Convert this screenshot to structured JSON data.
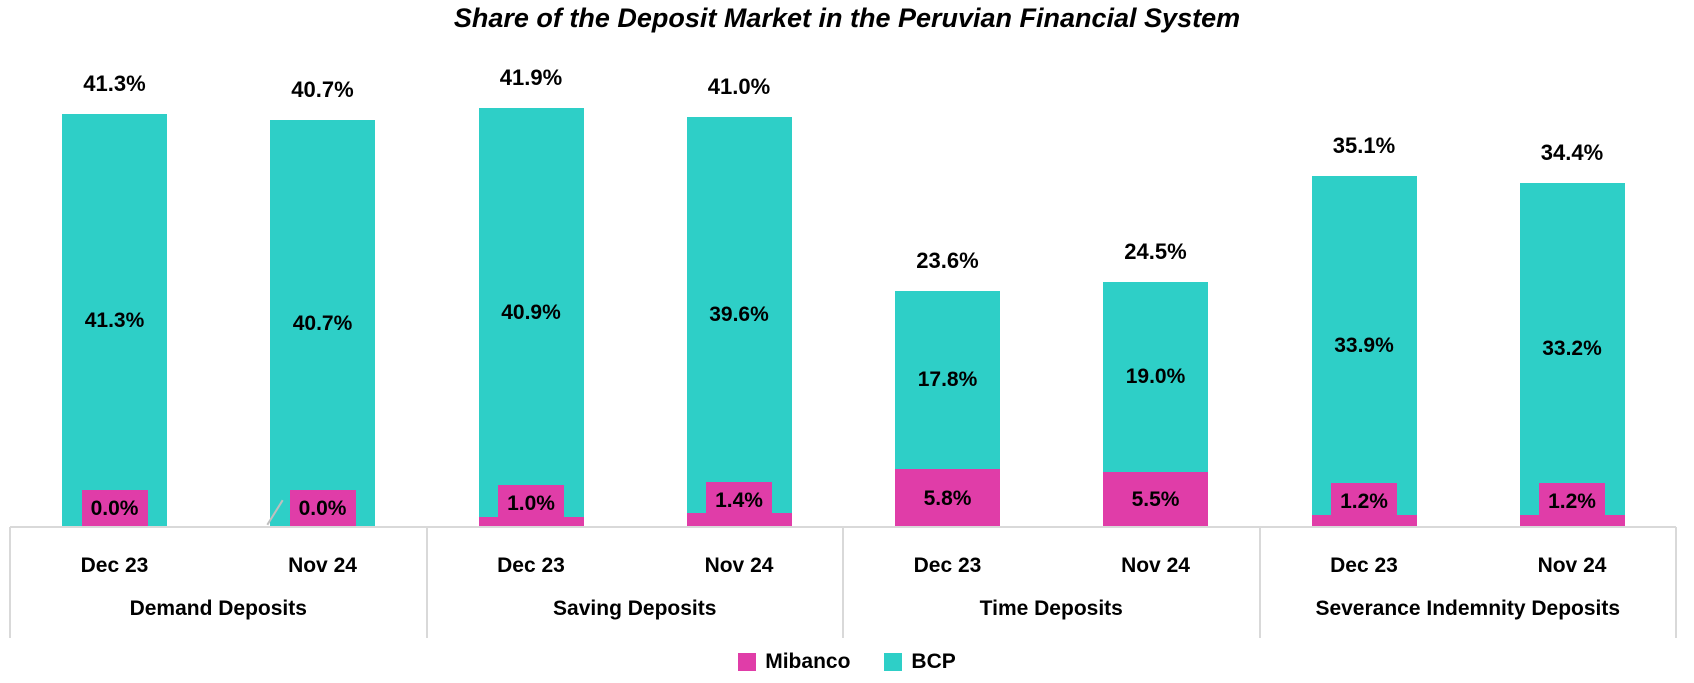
{
  "colors": {
    "mibanco": "#E03DA8",
    "bcp": "#2ECFC7",
    "axis_line": "#D9D9D9",
    "leader_line": "#BFBFBF",
    "text": "#000000",
    "background": "#FFFFFF"
  },
  "legend": {
    "items": [
      {
        "label": "Mibanco",
        "color": "#E03DA8"
      },
      {
        "label": "BCP",
        "color": "#2ECFC7"
      }
    ]
  },
  "chart_data": {
    "type": "bar",
    "stacked": true,
    "title": "Share of the Deposit Market in the Peruvian Financial System",
    "value_unit": "percent",
    "ylim": [
      0,
      45
    ],
    "grid": false,
    "y_axis_visible": false,
    "legend_position": "bottom",
    "categories": [
      "Demand Deposits",
      "Saving Deposits",
      "Time Deposits",
      "Severance Indemnity Deposits"
    ],
    "periods": [
      "Dec 23",
      "Nov 24"
    ],
    "series": [
      {
        "name": "Mibanco",
        "color": "#E03DA8",
        "values_by_category": [
          [
            0.0,
            0.0
          ],
          [
            1.0,
            1.4
          ],
          [
            5.8,
            5.5
          ],
          [
            1.2,
            1.2
          ]
        ]
      },
      {
        "name": "BCP",
        "color": "#2ECFC7",
        "values_by_category": [
          [
            41.3,
            40.7
          ],
          [
            40.9,
            39.6
          ],
          [
            17.8,
            19.0
          ],
          [
            33.9,
            33.2
          ]
        ]
      }
    ],
    "totals_by_category": [
      [
        41.3,
        40.7
      ],
      [
        41.9,
        41.0
      ],
      [
        23.6,
        24.5
      ],
      [
        35.1,
        34.4
      ]
    ],
    "groups": [
      {
        "category": "Demand Deposits",
        "bars": [
          {
            "period": "Dec 23",
            "mibanco": 0.0,
            "bcp": 41.3,
            "total": 41.3,
            "mibanco_label": "0.0%",
            "bcp_label": "41.3%",
            "total_label": "41.3%",
            "leader_line": false
          },
          {
            "period": "Nov 24",
            "mibanco": 0.0,
            "bcp": 40.7,
            "total": 40.7,
            "mibanco_label": "0.0%",
            "bcp_label": "40.7%",
            "total_label": "40.7%",
            "leader_line": true
          }
        ]
      },
      {
        "category": "Saving Deposits",
        "bars": [
          {
            "period": "Dec 23",
            "mibanco": 1.0,
            "bcp": 40.9,
            "total": 41.9,
            "mibanco_label": "1.0%",
            "bcp_label": "40.9%",
            "total_label": "41.9%",
            "leader_line": false
          },
          {
            "period": "Nov 24",
            "mibanco": 1.4,
            "bcp": 39.6,
            "total": 41.0,
            "mibanco_label": "1.4%",
            "bcp_label": "39.6%",
            "total_label": "41.0%",
            "leader_line": false
          }
        ]
      },
      {
        "category": "Time Deposits",
        "bars": [
          {
            "period": "Dec 23",
            "mibanco": 5.8,
            "bcp": 17.8,
            "total": 23.6,
            "mibanco_label": "5.8%",
            "bcp_label": "17.8%",
            "total_label": "23.6%",
            "leader_line": false
          },
          {
            "period": "Nov 24",
            "mibanco": 5.5,
            "bcp": 19.0,
            "total": 24.5,
            "mibanco_label": "5.5%",
            "bcp_label": "19.0%",
            "total_label": "24.5%",
            "leader_line": false
          }
        ]
      },
      {
        "category": "Severance Indemnity Deposits",
        "bars": [
          {
            "period": "Dec 23",
            "mibanco": 1.2,
            "bcp": 33.9,
            "total": 35.1,
            "mibanco_label": "1.2%",
            "bcp_label": "33.9%",
            "total_label": "35.1%",
            "leader_line": false
          },
          {
            "period": "Nov 24",
            "mibanco": 1.2,
            "bcp": 33.2,
            "total": 34.4,
            "mibanco_label": "1.2%",
            "bcp_label": "33.2%",
            "total_label": "34.4%",
            "leader_line": false
          }
        ]
      }
    ]
  }
}
